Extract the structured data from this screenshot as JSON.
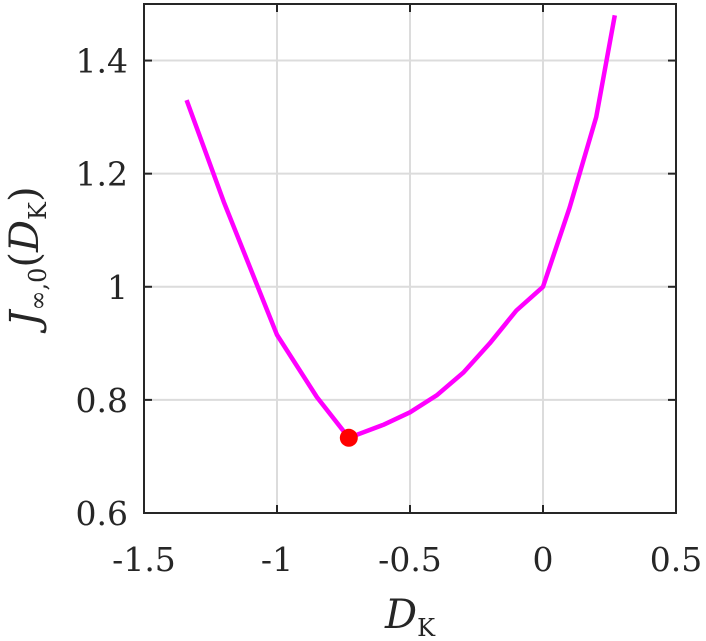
{
  "chart_data": {
    "type": "line",
    "xlabel": {
      "main": "D",
      "sub": "K"
    },
    "ylabel": {
      "main": "J",
      "sub": "∞,0",
      "open": "(",
      "arg_main": "D",
      "arg_sub": "K",
      "close": ")"
    },
    "xlim": [
      -1.5,
      0.5
    ],
    "ylim": [
      0.6,
      1.5
    ],
    "xticks": [
      -1.5,
      -1,
      -0.5,
      0,
      0.5
    ],
    "xtick_labels": [
      "-1.5",
      "-1",
      "-0.5",
      "0",
      "0.5"
    ],
    "yticks": [
      0.6,
      0.8,
      1.0,
      1.2,
      1.4
    ],
    "ytick_labels": [
      "0.6",
      "0.8",
      "1",
      "1.2",
      "1.4"
    ],
    "grid": true,
    "series": [
      {
        "color": "#ff00ff",
        "x": [
          -1.34,
          -1.2,
          -1.0,
          -0.85,
          -0.73,
          -0.6,
          -0.5,
          -0.4,
          -0.3,
          -0.2,
          -0.1,
          0.0,
          0.1,
          0.2,
          0.27
        ],
        "y": [
          1.33,
          1.15,
          0.915,
          0.805,
          0.733,
          0.756,
          0.778,
          0.808,
          0.848,
          0.9,
          0.958,
          1.0,
          1.14,
          1.3,
          1.48
        ]
      }
    ],
    "marker": {
      "x": -0.73,
      "y": 0.733,
      "color": "#ff0000"
    },
    "colors": {
      "grid": "#dcdcdc",
      "axis": "#262626"
    }
  }
}
